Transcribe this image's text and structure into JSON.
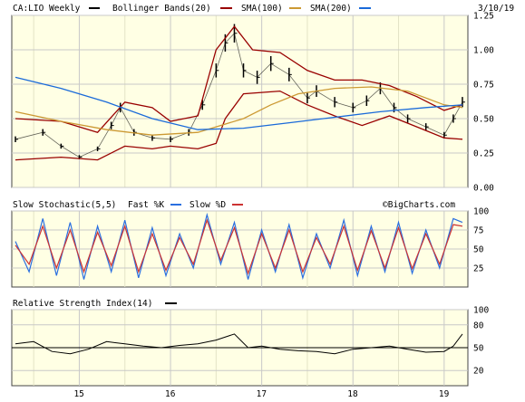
{
  "header": {
    "symbol_label": "CA:LIO Weekly",
    "indicator_label": "Bollinger Bands(20)",
    "sma100_label": "SMA(100)",
    "sma200_label": "SMA(200)",
    "date": "3/10/19",
    "stoch_label": "Slow Stochastic(5,5)",
    "fastk_label": "Fast %K",
    "slowd_label": "Slow %D",
    "watermark": "©BigCharts.com",
    "rsi_label": "Relative Strength Index(14)"
  },
  "colors": {
    "background": "#ffffe4",
    "grid": "#c8c8c8",
    "price": "#000000",
    "bollinger": "#990000",
    "sma100": "#cc9933",
    "sma200": "#1a6ad9",
    "fast_k": "#2a6fe0",
    "slow_d": "#cc3333",
    "rsi": "#000000"
  },
  "chart_data": [
    {
      "type": "line",
      "title": "CA:LIO Weekly",
      "x_ticks": [
        "15",
        "16",
        "17",
        "18",
        "19"
      ],
      "ylim": [
        0.0,
        1.25
      ],
      "y_ticks": [
        "0.00",
        "0.25",
        "0.50",
        "0.75",
        "1.00",
        "1.25"
      ],
      "grid": true,
      "series": [
        {
          "name": "CA:LIO Weekly",
          "style": "ohlc",
          "x": [
            2014.3,
            2014.6,
            2014.8,
            2015.0,
            2015.2,
            2015.35,
            2015.45,
            2015.6,
            2015.8,
            2016.0,
            2016.2,
            2016.35,
            2016.5,
            2016.6,
            2016.7,
            2016.8,
            2016.95,
            2017.1,
            2017.3,
            2017.5,
            2017.6,
            2017.8,
            2018.0,
            2018.15,
            2018.3,
            2018.45,
            2018.6,
            2018.8,
            2019.0,
            2019.1,
            2019.2
          ],
          "values": [
            0.35,
            0.4,
            0.3,
            0.22,
            0.28,
            0.45,
            0.58,
            0.4,
            0.36,
            0.35,
            0.4,
            0.6,
            0.85,
            1.05,
            1.12,
            0.85,
            0.8,
            0.9,
            0.82,
            0.65,
            0.7,
            0.62,
            0.58,
            0.63,
            0.72,
            0.58,
            0.5,
            0.44,
            0.38,
            0.5,
            0.62
          ]
        },
        {
          "name": "Bollinger Bands(20)",
          "role": "upper",
          "x": [
            2014.3,
            2014.8,
            2015.2,
            2015.5,
            2015.8,
            2016.0,
            2016.3,
            2016.5,
            2016.7,
            2016.9,
            2017.2,
            2017.5,
            2017.8,
            2018.1,
            2018.4,
            2018.7,
            2019.0,
            2019.2
          ],
          "values": [
            0.5,
            0.48,
            0.4,
            0.62,
            0.58,
            0.48,
            0.52,
            1.0,
            1.17,
            1.0,
            0.98,
            0.85,
            0.78,
            0.78,
            0.74,
            0.66,
            0.56,
            0.6
          ]
        },
        {
          "name": "Bollinger Bands(20)",
          "role": "lower",
          "x": [
            2014.3,
            2014.8,
            2015.2,
            2015.5,
            2015.8,
            2016.0,
            2016.3,
            2016.5,
            2016.6,
            2016.8,
            2017.2,
            2017.5,
            2017.8,
            2018.1,
            2018.4,
            2018.7,
            2019.0,
            2019.2
          ],
          "values": [
            0.2,
            0.22,
            0.2,
            0.3,
            0.28,
            0.3,
            0.28,
            0.32,
            0.5,
            0.68,
            0.7,
            0.6,
            0.52,
            0.45,
            0.52,
            0.44,
            0.36,
            0.35
          ]
        },
        {
          "name": "SMA(100)",
          "x": [
            2014.3,
            2014.8,
            2015.3,
            2015.8,
            2016.3,
            2016.8,
            2017.1,
            2017.4,
            2017.8,
            2018.2,
            2018.6,
            2019.0,
            2019.2
          ],
          "values": [
            0.55,
            0.48,
            0.42,
            0.38,
            0.4,
            0.5,
            0.6,
            0.68,
            0.72,
            0.73,
            0.7,
            0.6,
            0.58
          ]
        },
        {
          "name": "SMA(200)",
          "x": [
            2014.3,
            2014.8,
            2015.3,
            2015.8,
            2016.3,
            2016.8,
            2017.3,
            2017.8,
            2018.3,
            2018.8,
            2019.2
          ],
          "values": [
            0.8,
            0.72,
            0.62,
            0.5,
            0.42,
            0.43,
            0.47,
            0.51,
            0.55,
            0.58,
            0.6
          ]
        }
      ]
    },
    {
      "type": "line",
      "title": "Slow Stochastic(5,5)",
      "x_ticks": [
        "15",
        "16",
        "17",
        "18",
        "19"
      ],
      "ylim": [
        0,
        100
      ],
      "y_ticks": [
        "25",
        "50",
        "75",
        "100"
      ],
      "grid": true,
      "series": [
        {
          "name": "Fast %K",
          "x": [
            2014.3,
            2014.45,
            2014.6,
            2014.75,
            2014.9,
            2015.05,
            2015.2,
            2015.35,
            2015.5,
            2015.65,
            2015.8,
            2015.95,
            2016.1,
            2016.25,
            2016.4,
            2016.55,
            2016.7,
            2016.85,
            2017.0,
            2017.15,
            2017.3,
            2017.45,
            2017.6,
            2017.75,
            2017.9,
            2018.05,
            2018.2,
            2018.35,
            2018.5,
            2018.65,
            2018.8,
            2018.95,
            2019.1,
            2019.2
          ],
          "values": [
            60,
            20,
            90,
            15,
            85,
            10,
            80,
            20,
            88,
            12,
            78,
            15,
            70,
            25,
            95,
            30,
            85,
            10,
            75,
            20,
            82,
            12,
            70,
            25,
            88,
            15,
            80,
            20,
            85,
            18,
            75,
            25,
            90,
            85
          ]
        },
        {
          "name": "Slow %D",
          "x": [
            2014.3,
            2014.45,
            2014.6,
            2014.75,
            2014.9,
            2015.05,
            2015.2,
            2015.35,
            2015.5,
            2015.65,
            2015.8,
            2015.95,
            2016.1,
            2016.25,
            2016.4,
            2016.55,
            2016.7,
            2016.85,
            2017.0,
            2017.15,
            2017.3,
            2017.45,
            2017.6,
            2017.75,
            2017.9,
            2018.05,
            2018.2,
            2018.35,
            2018.5,
            2018.65,
            2018.8,
            2018.95,
            2019.1,
            2019.2
          ],
          "values": [
            55,
            30,
            80,
            25,
            75,
            20,
            72,
            28,
            80,
            20,
            70,
            22,
            65,
            30,
            88,
            35,
            78,
            18,
            70,
            25,
            75,
            20,
            65,
            30,
            80,
            22,
            74,
            25,
            78,
            24,
            70,
            30,
            82,
            80
          ]
        }
      ]
    },
    {
      "type": "line",
      "title": "Relative Strength Index(14)",
      "x_ticks": [
        "15",
        "16",
        "17",
        "18",
        "19"
      ],
      "ylim": [
        0,
        100
      ],
      "y_ticks": [
        "20",
        "50",
        "80",
        "100"
      ],
      "grid": true,
      "series": [
        {
          "name": "Relative Strength Index(14)",
          "x": [
            2014.3,
            2014.5,
            2014.7,
            2014.9,
            2015.1,
            2015.3,
            2015.5,
            2015.7,
            2015.9,
            2016.1,
            2016.3,
            2016.5,
            2016.7,
            2016.85,
            2017.0,
            2017.2,
            2017.4,
            2017.6,
            2017.8,
            2018.0,
            2018.2,
            2018.4,
            2018.6,
            2018.8,
            2019.0,
            2019.1,
            2019.2
          ],
          "values": [
            55,
            58,
            45,
            42,
            48,
            58,
            55,
            52,
            50,
            53,
            55,
            60,
            68,
            50,
            52,
            48,
            46,
            45,
            42,
            48,
            50,
            52,
            48,
            44,
            45,
            52,
            68
          ]
        }
      ]
    }
  ]
}
